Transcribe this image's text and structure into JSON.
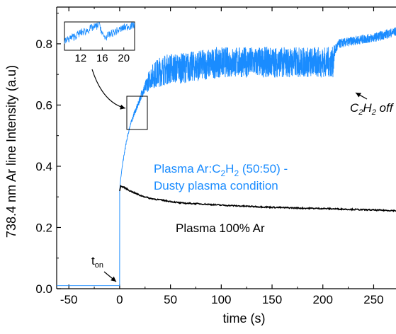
{
  "chart_data": {
    "type": "line",
    "xlabel": "time (s)",
    "ylabel": "738.4 nm Ar line Intensity (a.u)",
    "xlim": [
      -62,
      272
    ],
    "ylim": [
      0,
      0.92
    ],
    "xticks": [
      -50,
      0,
      50,
      100,
      150,
      200,
      250
    ],
    "yticks": [
      0.0,
      0.2,
      0.4,
      0.6,
      0.8
    ],
    "grid": false,
    "colors": {
      "dusty": "#1a8cff",
      "argon": "#000000"
    },
    "series": [
      {
        "name": "Plasma Ar:C2H2 (50:50) - Dusty plasma condition",
        "color": "#1a8cff",
        "x": [
          -62,
          -0.5,
          0,
          1,
          3,
          6,
          10,
          14,
          18,
          22,
          26,
          30,
          35,
          40,
          50,
          60,
          80,
          100,
          120,
          140,
          160,
          180,
          200,
          210,
          212,
          216,
          230,
          250,
          272
        ],
        "y": [
          0.01,
          0.01,
          0.32,
          0.36,
          0.41,
          0.47,
          0.53,
          0.57,
          0.6,
          0.64,
          0.66,
          0.69,
          0.7,
          0.71,
          0.72,
          0.72,
          0.73,
          0.74,
          0.74,
          0.74,
          0.74,
          0.74,
          0.74,
          0.74,
          0.78,
          0.8,
          0.81,
          0.82,
          0.84
        ],
        "noise": [
          0,
          0,
          0,
          0.005,
          0.008,
          0.01,
          0.012,
          0.015,
          0.02,
          0.03,
          0.05,
          0.07,
          0.09,
          0.1,
          0.1,
          0.1,
          0.1,
          0.1,
          0.1,
          0.1,
          0.1,
          0.1,
          0.1,
          0.1,
          0.04,
          0.03,
          0.03,
          0.03,
          0.03
        ]
      },
      {
        "name": "Plasma 100% Ar",
        "color": "#000000",
        "x": [
          0,
          1,
          5,
          10,
          20,
          30,
          40,
          50,
          60,
          80,
          100,
          120,
          150,
          180,
          200,
          230,
          250,
          272
        ],
        "y": [
          0.32,
          0.335,
          0.33,
          0.32,
          0.305,
          0.295,
          0.29,
          0.285,
          0.28,
          0.277,
          0.273,
          0.27,
          0.266,
          0.263,
          0.262,
          0.259,
          0.257,
          0.255
        ]
      }
    ],
    "annotations": {
      "dusty_line1": "Plasma Ar:C",
      "dusty_sub1": "2",
      "dusty_mid": "H",
      "dusty_sub2": "2",
      "dusty_tail": " (50:50) -",
      "dusty_line2": "Dusty plasma condition",
      "argon_label": "Plasma 100% Ar",
      "ton_main": "t",
      "ton_sub": "on",
      "off_c": "C",
      "off_sub1": "2",
      "off_h": "H",
      "off_sub2": "2",
      "off_tail": " off"
    },
    "inset": {
      "xlim": [
        9,
        22
      ],
      "xticks": [
        12,
        16,
        20
      ],
      "x": [
        9,
        10,
        11,
        12,
        13,
        14,
        15,
        15.5,
        16,
        16.5,
        17,
        18,
        19,
        20,
        21,
        22
      ],
      "y": [
        0.3,
        0.42,
        0.5,
        0.62,
        0.68,
        0.78,
        0.85,
        0.95,
        0.55,
        0.45,
        0.5,
        0.62,
        0.7,
        0.8,
        0.85,
        0.9
      ]
    }
  }
}
